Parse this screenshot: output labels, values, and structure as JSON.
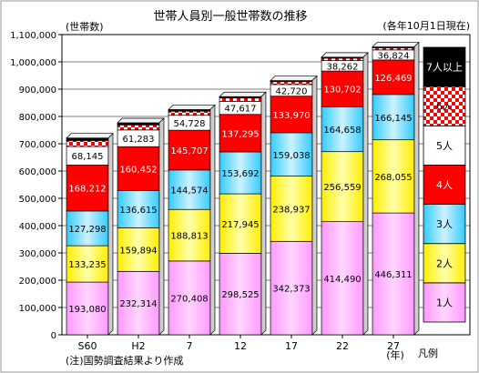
{
  "chart_data": {
    "type": "bar",
    "stacked": true,
    "title": "世帯人員別一般世帯数の推移",
    "unit_label": "(世帯数)",
    "date_note": "(各年10月1日現在)",
    "footnote": "(注)国勢調査結果より作成",
    "year_suffix": "(年)",
    "legend_category": "凡例",
    "categories": [
      "S60",
      "H2",
      "7",
      "12",
      "17",
      "22",
      "27"
    ],
    "ylim": [
      0,
      1100000
    ],
    "yticks": [
      "0",
      "100,000",
      "200,000",
      "300,000",
      "400,000",
      "500,000",
      "600,000",
      "700,000",
      "800,000",
      "900,000",
      "1,000,000",
      "1,100,000"
    ],
    "grid": true,
    "legend_placement": "right",
    "series": [
      {
        "name": "1人",
        "values": [
          193080,
          232314,
          270408,
          298525,
          342373,
          414490,
          446311
        ],
        "labels": [
          "193,080",
          "232,314",
          "270,408",
          "298,525",
          "342,373",
          "414,490",
          "446,311"
        ],
        "color": "#ff99ff",
        "pattern": "gradient",
        "labels_shown": true
      },
      {
        "name": "2人",
        "values": [
          133235,
          159894,
          188813,
          217945,
          238937,
          256559,
          268055
        ],
        "labels": [
          "133,235",
          "159,894",
          "188,813",
          "217,945",
          "238,937",
          "256,559",
          "268,055"
        ],
        "color": "#ffff00",
        "pattern": "gradient",
        "labels_shown": true
      },
      {
        "name": "3人",
        "values": [
          127298,
          136615,
          144574,
          153692,
          159038,
          164658,
          166145
        ],
        "labels": [
          "127,298",
          "136,615",
          "144,574",
          "153,692",
          "159,038",
          "164,658",
          "166,145"
        ],
        "color": "#33ccff",
        "pattern": "gradient",
        "labels_shown": true
      },
      {
        "name": "4人",
        "values": [
          168212,
          160452,
          145707,
          137295,
          133970,
          130702,
          126469
        ],
        "labels": [
          "168,212",
          "160,452",
          "145,707",
          "137,295",
          "133,970",
          "130,702",
          "126,469"
        ],
        "color": "#ff0000",
        "pattern": "solid",
        "labels_shown": true
      },
      {
        "name": "5人",
        "values": [
          68145,
          61283,
          54728,
          47617,
          42720,
          38262,
          36824
        ],
        "labels": [
          "68,145",
          "61,283",
          "54,728",
          "47,617",
          "42,720",
          "38,262",
          "36,824"
        ],
        "color": "#ffffff",
        "pattern": "solid",
        "labels_shown": true
      },
      {
        "name": "6人",
        "values": [
          22000,
          18500,
          15000,
          12500,
          10500,
          9000,
          8000
        ],
        "labels": [
          "",
          "",
          "",
          "",
          "",
          "",
          ""
        ],
        "color": "#ff0000",
        "pattern": "checker",
        "labels_shown": false
      },
      {
        "name": "7人以上",
        "values": [
          9000,
          7500,
          6000,
          5000,
          4000,
          3500,
          3000
        ],
        "labels": [
          "",
          "",
          "",
          "",
          "",
          "",
          ""
        ],
        "color": "#000000",
        "pattern": "solid",
        "labels_shown": false
      }
    ]
  }
}
